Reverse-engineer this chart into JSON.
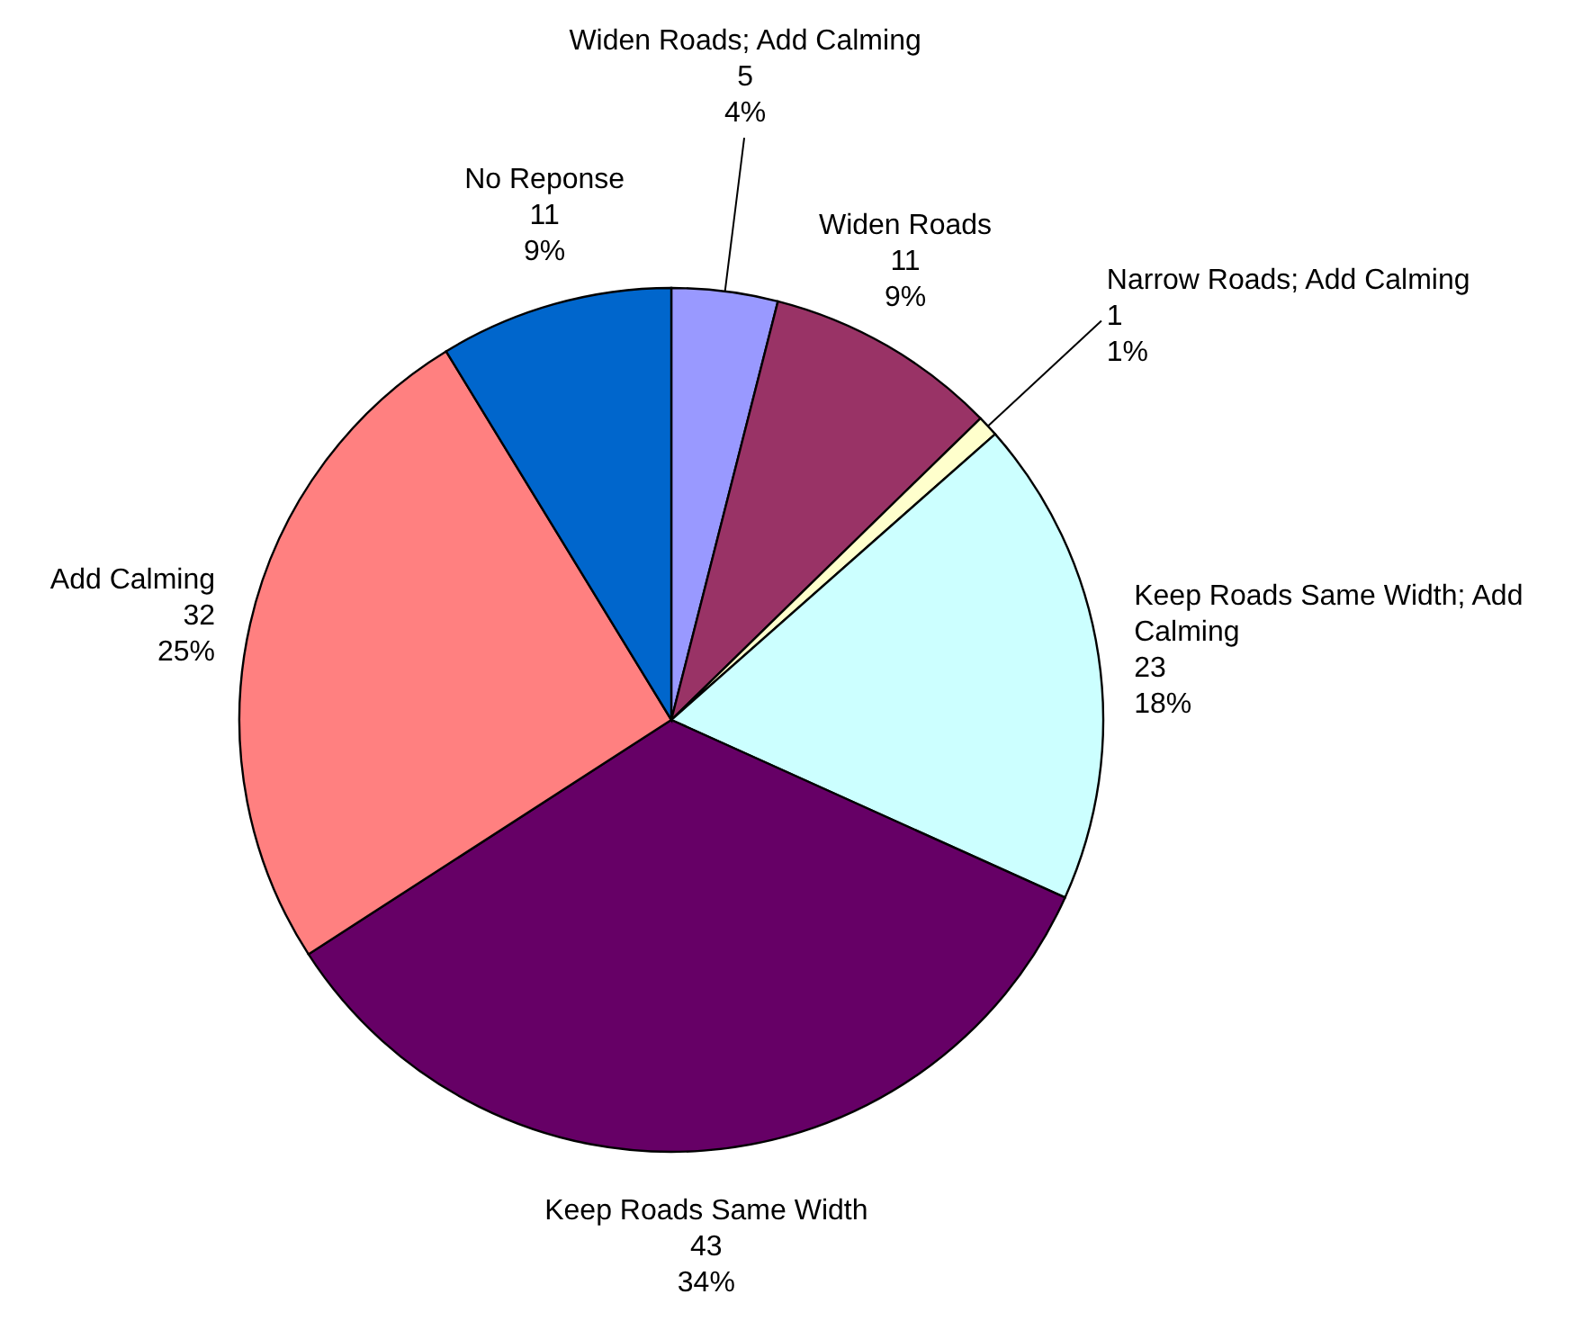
{
  "chart_data": {
    "type": "pie",
    "categories": [
      "Widen Roads; Add Calming",
      "Widen Roads",
      "Narrow Roads; Add Calming",
      "Keep Roads Same Width; Add Calming",
      "Keep Roads Same Width",
      "Add Calming",
      "No Reponse"
    ],
    "values": [
      5,
      11,
      1,
      23,
      43,
      32,
      11
    ],
    "colors": [
      "#9999ff",
      "#993366",
      "#ffffcc",
      "#ccffff",
      "#660066",
      "#ff8080",
      "#0066cc"
    ],
    "value_labels": [
      "5\n4%",
      "11\n9%",
      "1\n1%",
      "23\n18%",
      "43\n34%",
      "32\n25%",
      "11\n9%"
    ]
  }
}
